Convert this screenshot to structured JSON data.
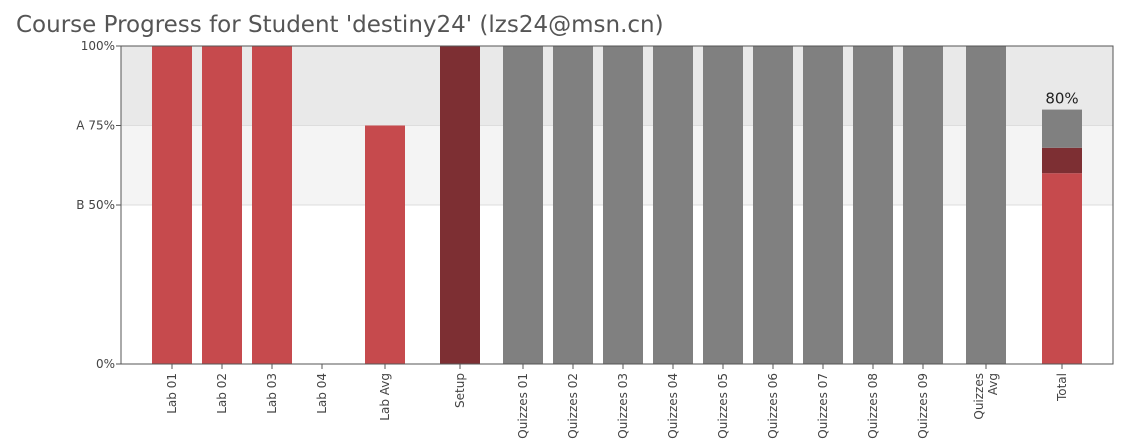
{
  "title": "Course Progress for Student 'destiny24' (lzs24@msn.cn)",
  "colors": {
    "lab": "#c64a4d",
    "setup": "#7d2f33",
    "quiz": "#808080",
    "band_a": "#e9e9e9",
    "band_b": "#f4f4f4",
    "axis": "#555555",
    "grid": "#dddddd"
  },
  "chart_data": {
    "type": "bar",
    "ylim": [
      0,
      100
    ],
    "yticks": [
      {
        "value": 0,
        "label": "0%"
      },
      {
        "value": 50,
        "label": "B 50%"
      },
      {
        "value": 75,
        "label": "A 75%"
      },
      {
        "value": 100,
        "label": "100%"
      }
    ],
    "grade_bands": [
      {
        "from": 50,
        "to": 75,
        "label": "B"
      },
      {
        "from": 75,
        "to": 100,
        "label": "A"
      }
    ],
    "categories": [
      {
        "label": "Lab 01",
        "value": 100,
        "color_key": "lab"
      },
      {
        "label": "Lab 02",
        "value": 100,
        "color_key": "lab"
      },
      {
        "label": "Lab 03",
        "value": 100,
        "color_key": "lab"
      },
      {
        "label": "Lab 04",
        "value": 0,
        "color_key": "lab"
      },
      {
        "label": "Lab Avg",
        "value": 75,
        "color_key": "lab"
      },
      {
        "label": "Setup",
        "value": 100,
        "color_key": "setup"
      },
      {
        "label": "Quizzes 01",
        "value": 100,
        "color_key": "quiz"
      },
      {
        "label": "Quizzes 02",
        "value": 100,
        "color_key": "quiz"
      },
      {
        "label": "Quizzes 03",
        "value": 100,
        "color_key": "quiz"
      },
      {
        "label": "Quizzes 04",
        "value": 100,
        "color_key": "quiz"
      },
      {
        "label": "Quizzes 05",
        "value": 100,
        "color_key": "quiz"
      },
      {
        "label": "Quizzes 06",
        "value": 100,
        "color_key": "quiz"
      },
      {
        "label": "Quizzes 07",
        "value": 100,
        "color_key": "quiz"
      },
      {
        "label": "Quizzes 08",
        "value": 100,
        "color_key": "quiz"
      },
      {
        "label": "Quizzes 09",
        "value": 100,
        "color_key": "quiz"
      },
      {
        "label": "Quizzes Avg",
        "value": 100,
        "color_key": "quiz"
      }
    ],
    "total": {
      "label": "Total",
      "value": 80,
      "value_label": "80%",
      "segments": [
        {
          "component": "Lab",
          "value": 60,
          "color_key": "lab"
        },
        {
          "component": "Setup",
          "value": 8,
          "color_key": "setup"
        },
        {
          "component": "Quizzes",
          "value": 12,
          "color_key": "quiz"
        }
      ]
    }
  }
}
